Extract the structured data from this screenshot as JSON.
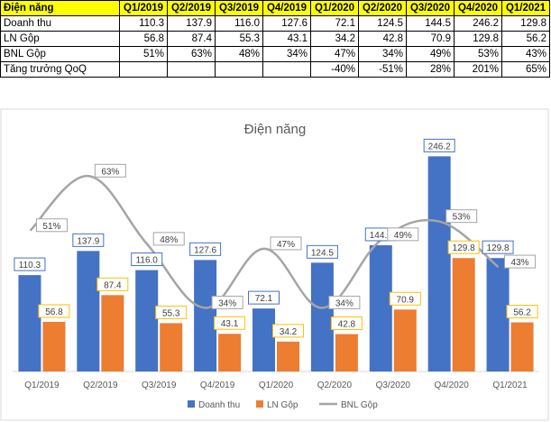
{
  "table": {
    "header": [
      "Điện năng",
      "Q1/2019",
      "Q2/2019",
      "Q3/2019",
      "Q4/2019",
      "Q1/2020",
      "Q2/2020",
      "Q3/2020",
      "Q4/2020",
      "Q1/2021"
    ],
    "rows": [
      {
        "label": "Doanh thu",
        "cells": [
          "110.3",
          "137.9",
          "116.0",
          "127.6",
          "72.1",
          "124.5",
          "144.5",
          "246.2",
          "129.8"
        ]
      },
      {
        "label": "LN Gộp",
        "cells": [
          "56.8",
          "87.4",
          "55.3",
          "43.1",
          "34.2",
          "42.8",
          "70.9",
          "129.8",
          "56.2"
        ]
      },
      {
        "label": "BNL Gộp",
        "cells": [
          "51%",
          "63%",
          "48%",
          "34%",
          "47%",
          "34%",
          "49%",
          "53%",
          "43%"
        ]
      },
      {
        "label": "Tăng trưởng QoQ",
        "cells": [
          "",
          "",
          "",
          "",
          "-40%",
          "-51%",
          "28%",
          "201%",
          "65%"
        ]
      }
    ]
  },
  "chart_data": {
    "type": "bar",
    "title": "Điện năng",
    "categories": [
      "Q1/2019",
      "Q2/2019",
      "Q3/2019",
      "Q4/2019",
      "Q1/2020",
      "Q2/2020",
      "Q3/2020",
      "Q4/2020",
      "Q1/2021"
    ],
    "series": [
      {
        "name": "Doanh thu",
        "kind": "bar",
        "color": "#4472c4",
        "values": [
          110.3,
          137.9,
          116.0,
          127.6,
          72.1,
          124.5,
          144.5,
          246.2,
          129.8
        ],
        "labels": [
          "110.3",
          "137.9",
          "116.0",
          "127.6",
          "72.1",
          "124.5",
          "144.5",
          "246.2",
          "129.8"
        ]
      },
      {
        "name": "LN Gộp",
        "kind": "bar",
        "color": "#ed7d31",
        "values": [
          56.8,
          87.4,
          55.3,
          43.1,
          34.2,
          42.8,
          70.9,
          129.8,
          56.2
        ],
        "labels": [
          "56.8",
          "87.4",
          "55.3",
          "43.1",
          "34.2",
          "42.8",
          "70.9",
          "129.8",
          "56.2"
        ]
      },
      {
        "name": "BNL Gộp",
        "kind": "line",
        "color": "#a5a5a5",
        "axis": "secondary",
        "values": [
          0.51,
          0.63,
          0.48,
          0.34,
          0.47,
          0.34,
          0.49,
          0.53,
          0.43
        ],
        "labels": [
          "51%",
          "63%",
          "48%",
          "34%",
          "47%",
          "34%",
          "49%",
          "53%",
          "43%"
        ]
      }
    ],
    "ylim": [
      0,
      260
    ],
    "y2lim": [
      0.2,
      0.7
    ],
    "legend": "bottom",
    "grid": false,
    "box_colors": {
      "bar1": "#4472c4",
      "bar2": "#ffc000",
      "line": "#a5a5a5"
    }
  }
}
